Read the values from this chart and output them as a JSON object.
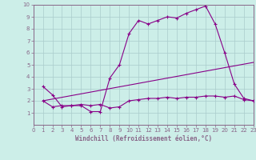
{
  "xlabel": "Windchill (Refroidissement éolien,°C)",
  "xlim": [
    0,
    23
  ],
  "ylim": [
    0,
    10
  ],
  "xticks": [
    0,
    1,
    2,
    3,
    4,
    5,
    6,
    7,
    8,
    9,
    10,
    11,
    12,
    13,
    14,
    15,
    16,
    17,
    18,
    19,
    20,
    21,
    22,
    23
  ],
  "yticks": [
    1,
    2,
    3,
    4,
    5,
    6,
    7,
    8,
    9,
    10
  ],
  "bg_color": "#cceee8",
  "line_color": "#880088",
  "grid_color": "#aacccc",
  "border_color": "#886688",
  "line1_x": [
    1,
    2,
    3,
    4,
    5,
    6,
    7,
    8,
    9,
    10,
    11,
    12,
    13,
    14,
    15,
    16,
    17,
    18,
    19,
    20,
    21,
    22,
    23
  ],
  "line1_y": [
    3.2,
    2.5,
    1.5,
    1.6,
    1.6,
    1.1,
    1.1,
    3.9,
    5.0,
    7.6,
    8.7,
    8.4,
    8.7,
    9.0,
    8.9,
    9.3,
    9.6,
    9.9,
    8.4,
    6.0,
    3.4,
    2.2,
    2.0
  ],
  "line2_x": [
    1,
    2,
    3,
    4,
    5,
    6,
    7,
    8,
    9,
    10,
    11,
    12,
    13,
    14,
    15,
    16,
    17,
    18,
    19,
    20,
    21,
    22,
    23
  ],
  "line2_y": [
    2.0,
    1.5,
    1.6,
    1.6,
    1.7,
    1.6,
    1.7,
    1.4,
    1.5,
    2.0,
    2.1,
    2.2,
    2.2,
    2.3,
    2.2,
    2.3,
    2.3,
    2.4,
    2.4,
    2.3,
    2.4,
    2.1,
    2.0
  ],
  "line3_x": [
    1,
    23
  ],
  "line3_y": [
    2.0,
    5.2
  ]
}
